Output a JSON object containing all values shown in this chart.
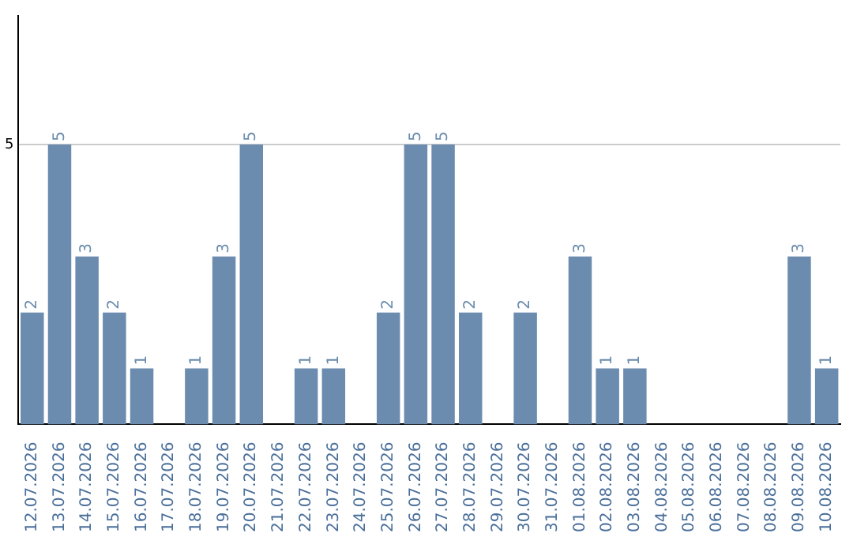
{
  "chart_data": {
    "type": "bar",
    "categories": [
      "12.07.2026",
      "13.07.2026",
      "14.07.2026",
      "15.07.2026",
      "16.07.2026",
      "17.07.2026",
      "18.07.2026",
      "19.07.2026",
      "20.07.2026",
      "21.07.2026",
      "22.07.2026",
      "23.07.2026",
      "24.07.2026",
      "25.07.2026",
      "26.07.2026",
      "27.07.2026",
      "28.07.2026",
      "29.07.2026",
      "30.07.2026",
      "31.07.2026",
      "01.08.2026",
      "02.08.2026",
      "03.08.2026",
      "04.08.2026",
      "05.08.2026",
      "06.08.2026",
      "07.08.2026",
      "08.08.2026",
      "09.08.2026",
      "10.08.2026"
    ],
    "values": [
      2,
      5,
      3,
      2,
      1,
      null,
      1,
      3,
      5,
      null,
      1,
      1,
      null,
      2,
      5,
      5,
      2,
      null,
      2,
      null,
      3,
      1,
      1,
      null,
      null,
      null,
      null,
      null,
      3,
      1
    ],
    "color": "#6b8cae",
    "ylim": [
      0,
      7.3
    ],
    "yticks": [
      5
    ],
    "grid": "y",
    "data_labels": true
  }
}
